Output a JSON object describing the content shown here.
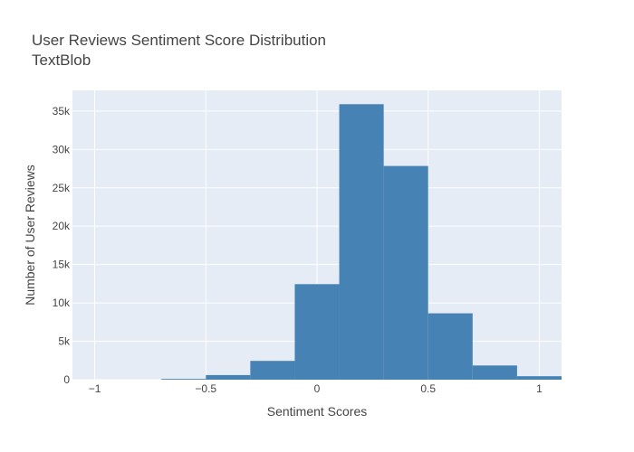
{
  "chart_data": {
    "type": "bar",
    "title": "User Reviews Sentiment Score Distribution",
    "subtitle": "TextBlob",
    "xlabel": "Sentiment Scores",
    "ylabel": "Number of User Reviews",
    "bins": [
      {
        "x0": -0.9,
        "x1": -0.7,
        "value": 0
      },
      {
        "x0": -0.7,
        "x1": -0.5,
        "value": 100
      },
      {
        "x0": -0.5,
        "x1": -0.3,
        "value": 600
      },
      {
        "x0": -0.3,
        "x1": -0.1,
        "value": 2450
      },
      {
        "x0": -0.1,
        "x1": 0.1,
        "value": 12450
      },
      {
        "x0": 0.1,
        "x1": 0.3,
        "value": 35900
      },
      {
        "x0": 0.3,
        "x1": 0.5,
        "value": 27850
      },
      {
        "x0": 0.5,
        "x1": 0.7,
        "value": 8650
      },
      {
        "x0": 0.7,
        "x1": 0.9,
        "value": 1850
      },
      {
        "x0": 0.9,
        "x1": 1.1,
        "value": 450
      }
    ],
    "xlim": [
      -1.1,
      1.1
    ],
    "ylim": [
      0,
      37700
    ],
    "xticks": [
      {
        "value": -1,
        "label": "−1"
      },
      {
        "value": -0.5,
        "label": "−0.5"
      },
      {
        "value": 0,
        "label": "0"
      },
      {
        "value": 0.5,
        "label": "0.5"
      },
      {
        "value": 1,
        "label": "1"
      }
    ],
    "yticks": [
      {
        "value": 0,
        "label": "0"
      },
      {
        "value": 5000,
        "label": "5k"
      },
      {
        "value": 10000,
        "label": "10k"
      },
      {
        "value": 15000,
        "label": "15k"
      },
      {
        "value": 20000,
        "label": "20k"
      },
      {
        "value": 25000,
        "label": "25k"
      },
      {
        "value": 30000,
        "label": "30k"
      },
      {
        "value": 35000,
        "label": "35k"
      }
    ],
    "grid": true,
    "colors": {
      "bar": "#4682b4",
      "plot_bg": "#e5ecf6",
      "grid": "#ffffff",
      "text": "#444444"
    }
  }
}
